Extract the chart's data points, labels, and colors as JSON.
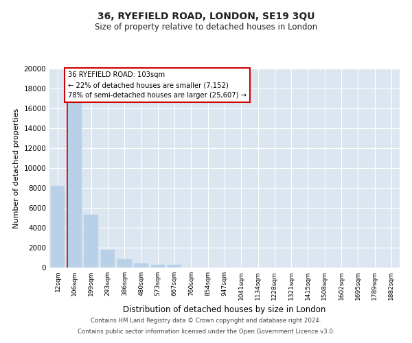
{
  "title": "36, RYEFIELD ROAD, LONDON, SE19 3QU",
  "subtitle": "Size of property relative to detached houses in London",
  "xlabel": "Distribution of detached houses by size in London",
  "ylabel": "Number of detached properties",
  "bar_color": "#b8d0e8",
  "bar_edge_color": "#b8d0e8",
  "subject_line_color": "#cc0000",
  "background_color": "#ffffff",
  "plot_bg_color": "#dce6f0",
  "grid_color": "#ffffff",
  "annotation_box_color": "#cc0000",
  "categories": [
    "12sqm",
    "106sqm",
    "199sqm",
    "293sqm",
    "386sqm",
    "480sqm",
    "573sqm",
    "667sqm",
    "760sqm",
    "854sqm",
    "947sqm",
    "1041sqm",
    "1134sqm",
    "1228sqm",
    "1321sqm",
    "1415sqm",
    "1508sqm",
    "1602sqm",
    "1695sqm",
    "1789sqm",
    "1882sqm"
  ],
  "values": [
    8200,
    16700,
    5300,
    1800,
    800,
    400,
    300,
    300,
    0,
    0,
    0,
    0,
    0,
    0,
    0,
    0,
    0,
    0,
    0,
    0,
    0
  ],
  "annotation_line1": "36 RYEFIELD ROAD: 103sqm",
  "annotation_line2": "← 22% of detached houses are smaller (7,152)",
  "annotation_line3": "78% of semi-detached houses are larger (25,607) →",
  "ylim": [
    0,
    20000
  ],
  "yticks": [
    0,
    2000,
    4000,
    6000,
    8000,
    10000,
    12000,
    14000,
    16000,
    18000,
    20000
  ],
  "footer_line1": "Contains HM Land Registry data © Crown copyright and database right 2024.",
  "footer_line2": "Contains public sector information licensed under the Open Government Licence v3.0."
}
